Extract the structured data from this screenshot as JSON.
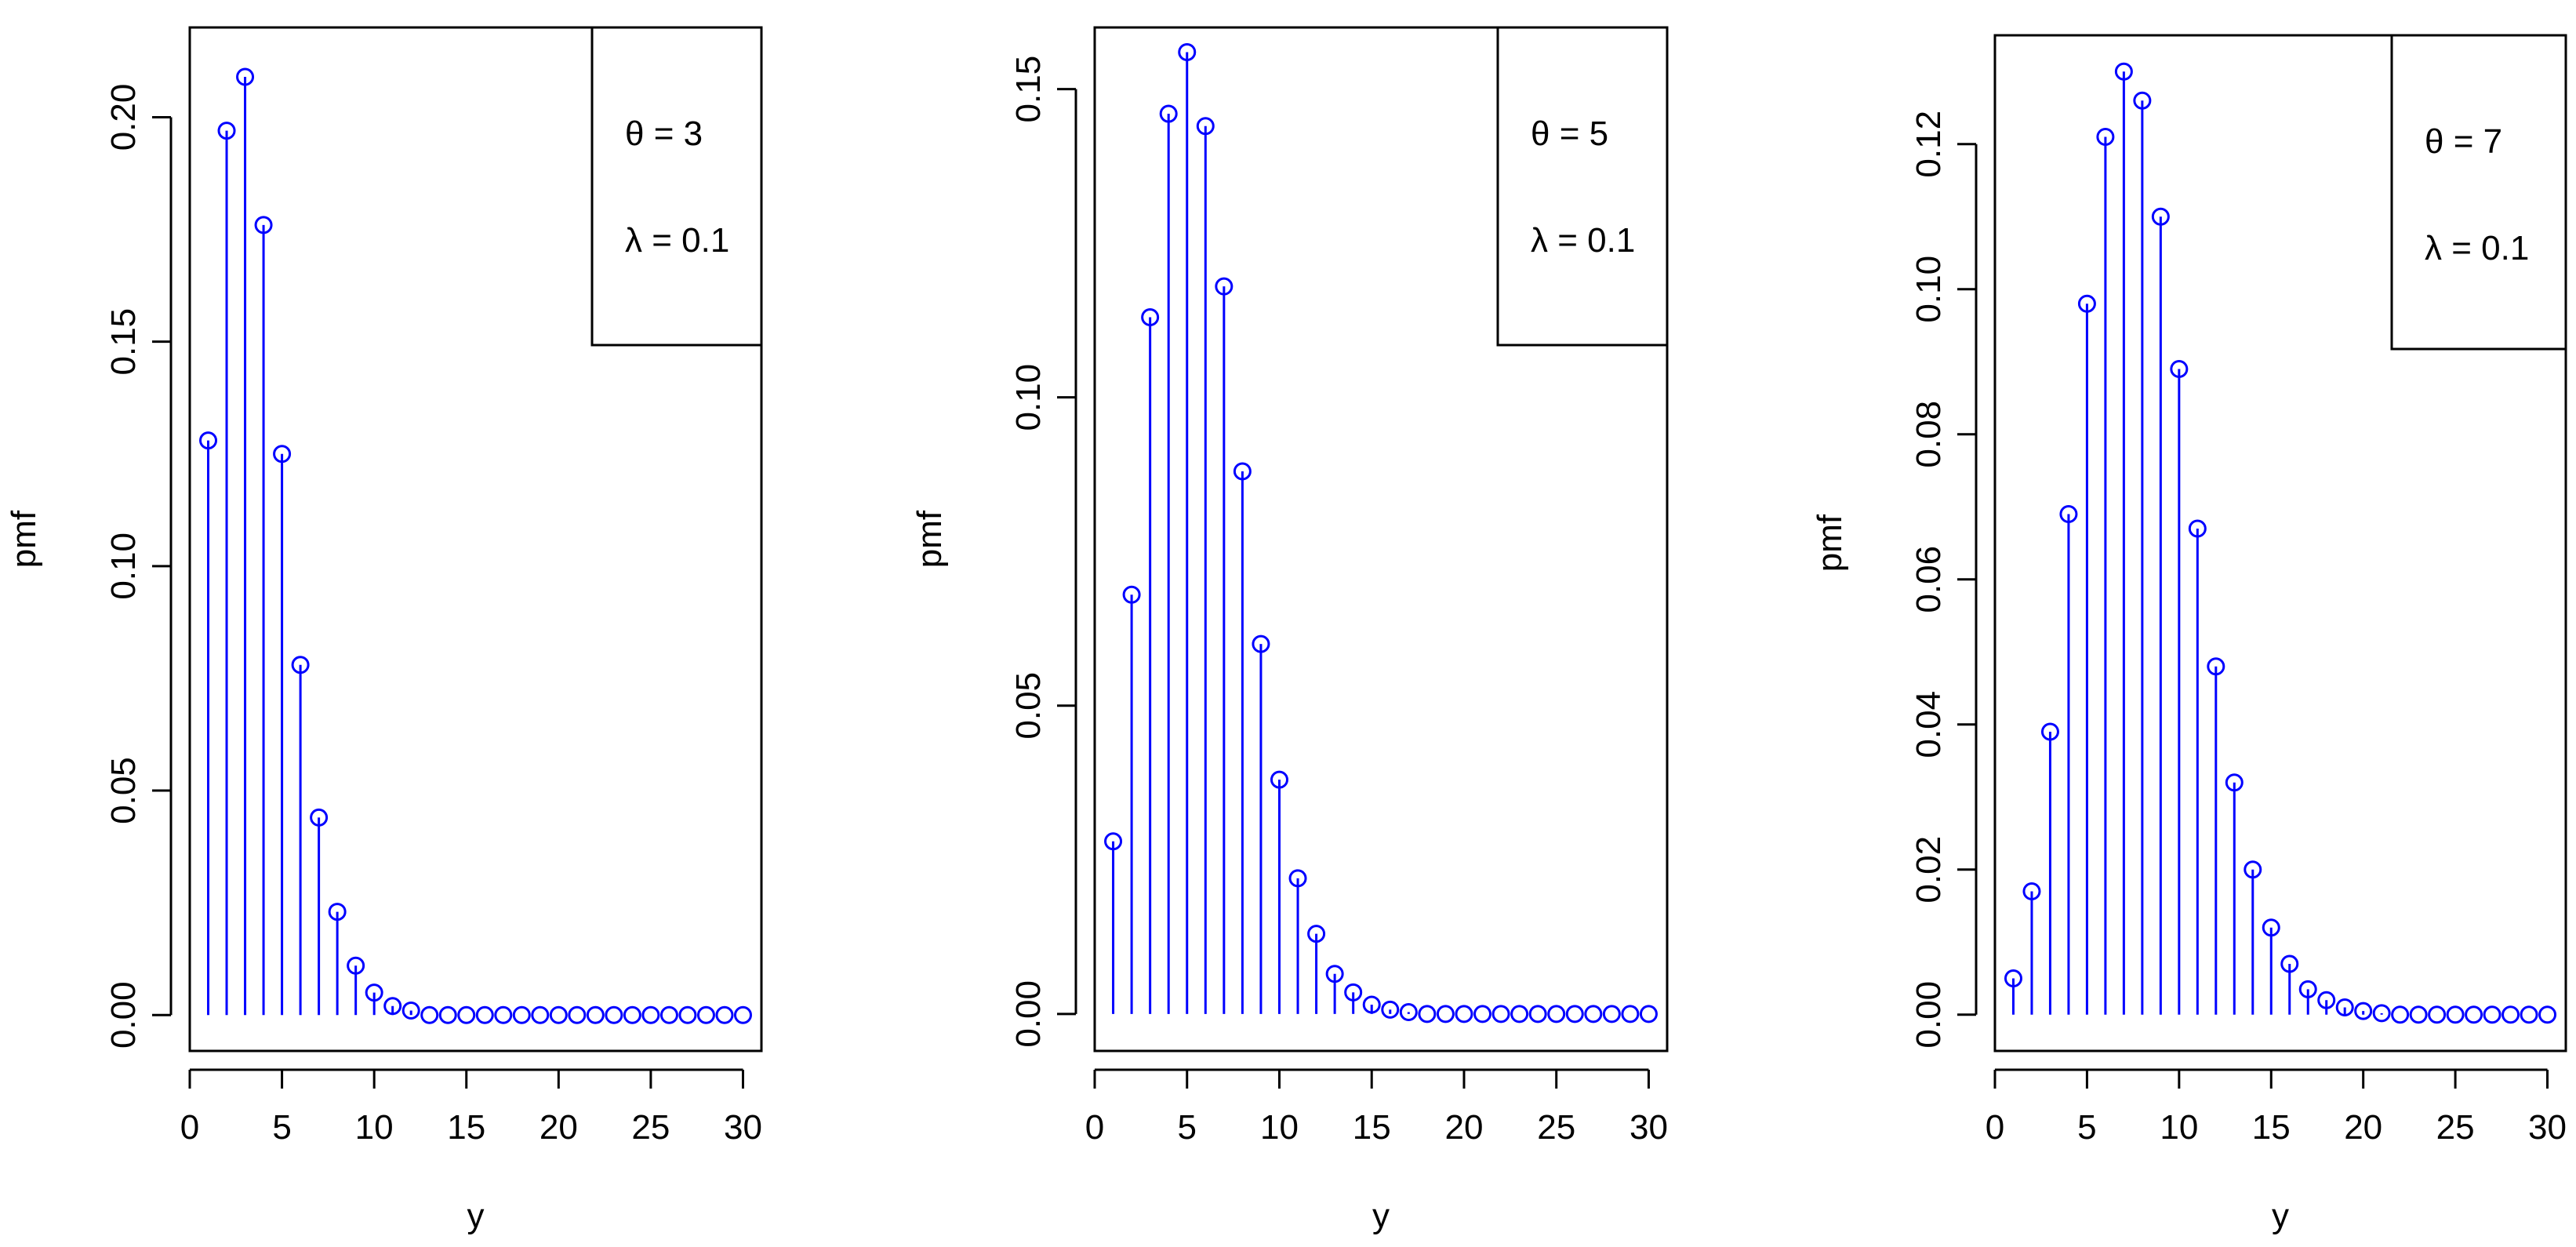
{
  "chart_data": [
    {
      "type": "lollipop",
      "xlabel": "y",
      "ylabel": "pmf",
      "xlim": [
        0,
        31
      ],
      "ylim": [
        -0.008,
        0.22
      ],
      "xticks": [
        "0",
        "5",
        "10",
        "15",
        "20",
        "25",
        "30"
      ],
      "yticks": [
        "0.00",
        "0.05",
        "0.10",
        "0.15",
        "0.20"
      ],
      "legend": {
        "position": "top-right",
        "lines": [
          "θ = 3",
          "λ = 0.1"
        ]
      },
      "x": [
        1,
        2,
        3,
        4,
        5,
        6,
        7,
        8,
        9,
        10,
        11,
        12,
        13,
        14,
        15,
        16,
        17,
        18,
        19,
        20,
        21,
        22,
        23,
        24,
        25,
        26,
        27,
        28,
        29,
        30
      ],
      "values": [
        0.128,
        0.197,
        0.209,
        0.176,
        0.125,
        0.078,
        0.044,
        0.023,
        0.011,
        0.005,
        0.002,
        0.001,
        0,
        0,
        0,
        0,
        0,
        0,
        0,
        0,
        0,
        0,
        0,
        0,
        0,
        0,
        0,
        0,
        0,
        0
      ],
      "color": "#0000ff"
    },
    {
      "type": "lollipop",
      "xlabel": "y",
      "ylabel": "pmf",
      "xlim": [
        0,
        31
      ],
      "ylim": [
        -0.006,
        0.16
      ],
      "xticks": [
        "0",
        "5",
        "10",
        "15",
        "20",
        "25",
        "30"
      ],
      "yticks": [
        "0.00",
        "0.05",
        "0.10",
        "0.15"
      ],
      "legend": {
        "position": "top-right",
        "lines": [
          "θ = 5",
          "λ = 0.1"
        ]
      },
      "x": [
        1,
        2,
        3,
        4,
        5,
        6,
        7,
        8,
        9,
        10,
        11,
        12,
        13,
        14,
        15,
        16,
        17,
        18,
        19,
        20,
        21,
        22,
        23,
        24,
        25,
        26,
        27,
        28,
        29,
        30
      ],
      "values": [
        0.028,
        0.068,
        0.113,
        0.146,
        0.156,
        0.144,
        0.118,
        0.088,
        0.06,
        0.038,
        0.022,
        0.013,
        0.0065,
        0.0035,
        0.0015,
        0.0007,
        0.0003,
        0,
        0,
        0,
        0,
        0,
        0,
        0,
        0,
        0,
        0,
        0,
        0,
        0
      ],
      "color": "#0000ff"
    },
    {
      "type": "lollipop",
      "xlabel": "y",
      "ylabel": "pmf",
      "xlim": [
        0,
        31
      ],
      "ylim": [
        -0.005,
        0.135
      ],
      "xticks": [
        "0",
        "5",
        "10",
        "15",
        "20",
        "25",
        "30"
      ],
      "yticks": [
        "0.00",
        "0.02",
        "0.04",
        "0.06",
        "0.08",
        "0.10",
        "0.12"
      ],
      "legend": {
        "position": "top-right",
        "lines": [
          "θ = 7",
          "λ = 0.1"
        ]
      },
      "x": [
        1,
        2,
        3,
        4,
        5,
        6,
        7,
        8,
        9,
        10,
        11,
        12,
        13,
        14,
        15,
        16,
        17,
        18,
        19,
        20,
        21,
        22,
        23,
        24,
        25,
        26,
        27,
        28,
        29,
        30
      ],
      "values": [
        0.005,
        0.017,
        0.039,
        0.069,
        0.098,
        0.121,
        0.13,
        0.126,
        0.11,
        0.089,
        0.067,
        0.048,
        0.032,
        0.02,
        0.012,
        0.007,
        0.0035,
        0.002,
        0.001,
        0.0005,
        0.0002,
        0,
        0,
        0,
        0,
        0,
        0,
        0,
        0,
        0
      ],
      "color": "#0000ff"
    }
  ]
}
